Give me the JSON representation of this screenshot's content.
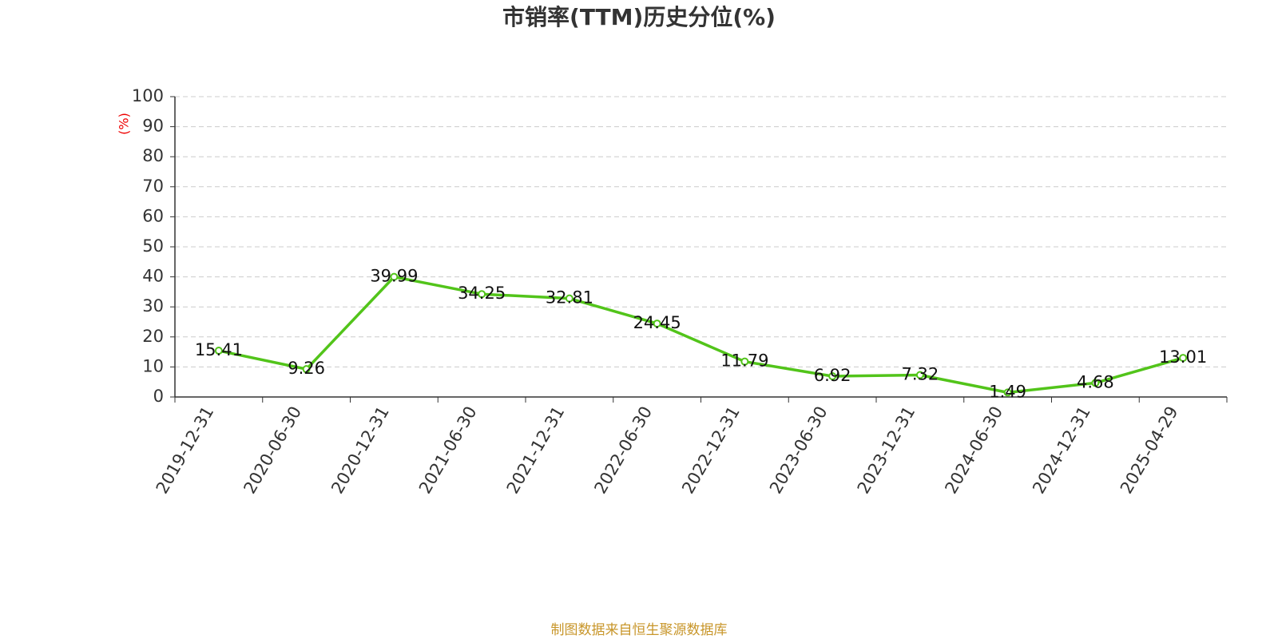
{
  "chart_data": {
    "type": "line",
    "title": "市销率(TTM)历史分位(%)",
    "y_label": "(%)",
    "source": "制图数据来自恒生聚源数据库",
    "categories": [
      "2019-12-31",
      "2020-06-30",
      "2020-12-31",
      "2021-06-30",
      "2021-12-31",
      "2022-06-30",
      "2022-12-31",
      "2023-06-30",
      "2023-12-31",
      "2024-06-30",
      "2024-12-31",
      "2025-04-29"
    ],
    "series": [
      {
        "name": "市销率(TTM)历史分位",
        "color": "#52c41a",
        "values": [
          15.41,
          9.26,
          39.99,
          34.25,
          32.81,
          24.45,
          11.79,
          6.92,
          7.32,
          1.49,
          4.68,
          13.01
        ]
      }
    ],
    "ylim": [
      0,
      100
    ],
    "yticks": [
      0,
      10,
      20,
      30,
      40,
      50,
      60,
      70,
      80,
      90,
      100
    ],
    "grid": true
  }
}
